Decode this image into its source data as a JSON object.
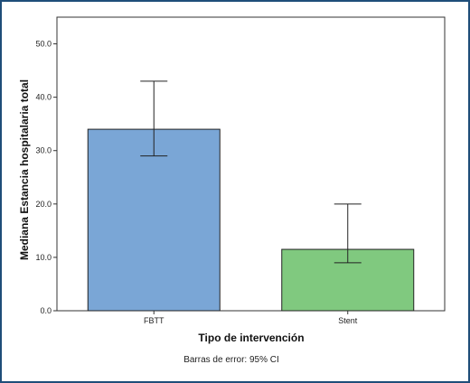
{
  "chart_data": {
    "type": "bar",
    "title": "",
    "xlabel": "Tipo de intervención",
    "ylabel": "Mediana Estancia hospitalaria total",
    "categories": [
      "FBTT",
      "Stent"
    ],
    "values": [
      34.0,
      11.5
    ],
    "error_bars": [
      {
        "low": 29.0,
        "high": 43.0
      },
      {
        "low": 9.0,
        "high": 20.0
      }
    ],
    "ylim": [
      0,
      55
    ],
    "yticks": [
      0.0,
      10.0,
      20.0,
      30.0,
      40.0,
      50.0
    ],
    "ytick_labels": [
      "0.0",
      "10.0",
      "20.0",
      "30.0",
      "40.0",
      "50.0"
    ],
    "bar_colors": [
      "#7aa6d6",
      "#80c97f"
    ],
    "grid": false,
    "footnote": "Barras de error: 95% CI"
  }
}
